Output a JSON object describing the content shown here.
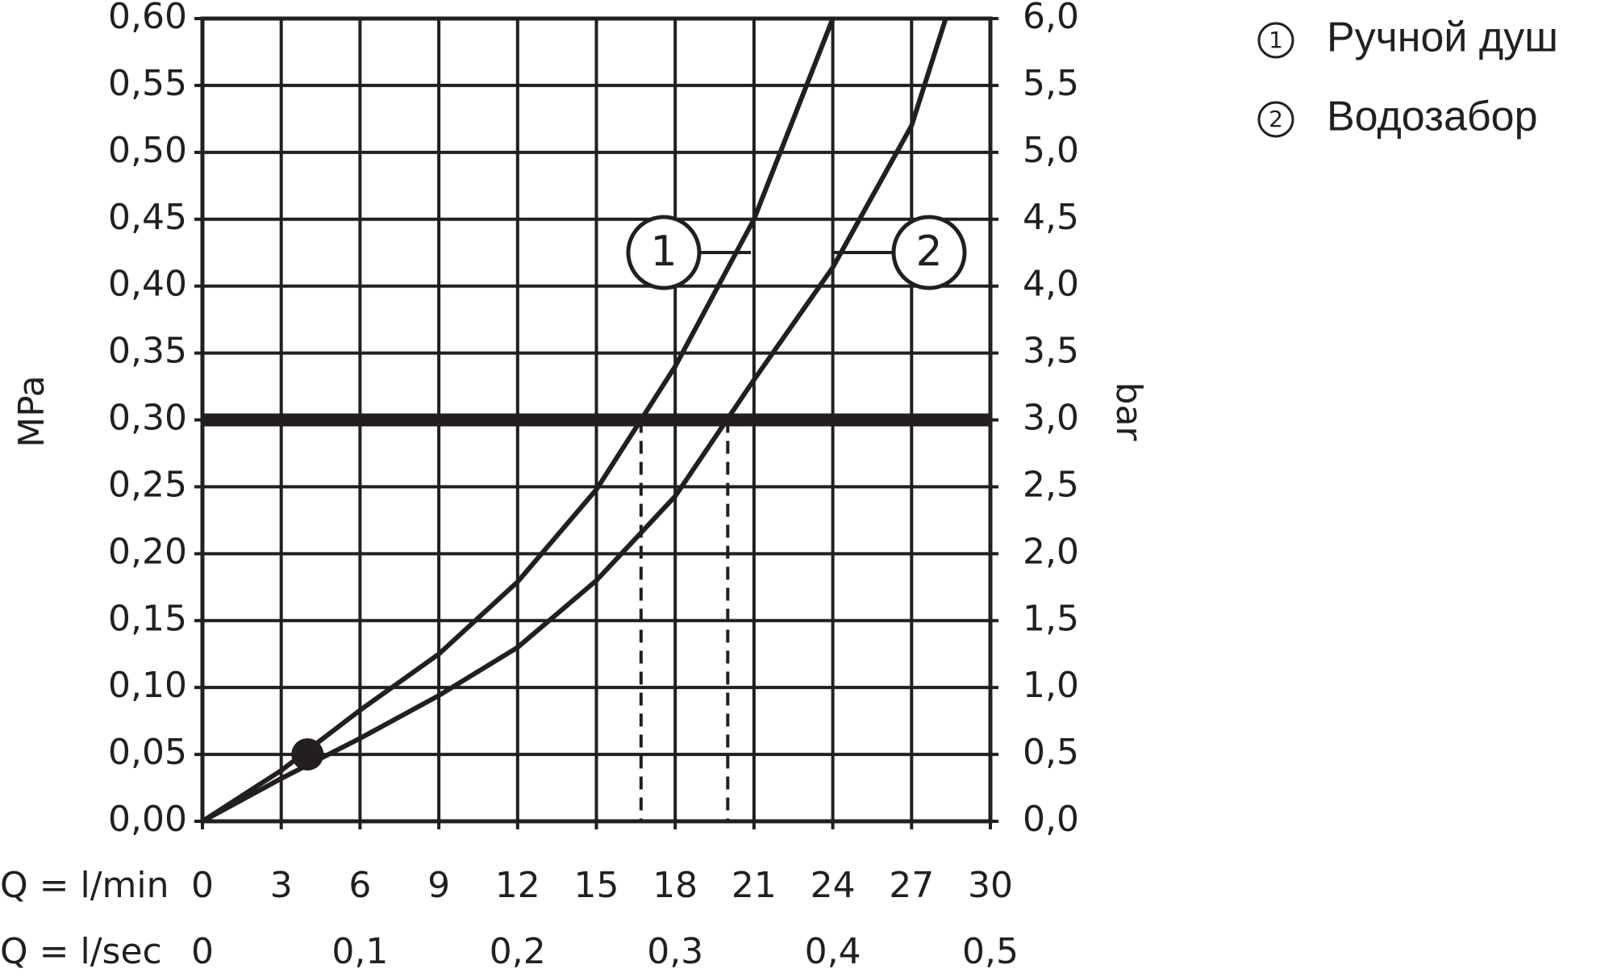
{
  "chart_data": {
    "type": "line",
    "xlabel": "Q = l/min",
    "x2label": "Q = l/sec",
    "ylabel": "MPa",
    "y2label": "bar",
    "xlim": [
      0,
      30
    ],
    "xticks": [
      0,
      3,
      6,
      9,
      12,
      15,
      18,
      21,
      24,
      27,
      30
    ],
    "x2lim": [
      0,
      0.5
    ],
    "x2ticks": [
      0,
      {
        "value": 0.1,
        "label": "0,1"
      },
      {
        "value": 0.2,
        "label": "0,2"
      },
      {
        "value": 0.3,
        "label": "0,3"
      },
      {
        "value": 0.4,
        "label": "0,4"
      },
      {
        "value": 0.5,
        "label": "0,5"
      }
    ],
    "ylim": [
      0,
      0.6
    ],
    "yticks": [
      {
        "value": 0,
        "label": "0,00"
      },
      {
        "value": 0.05,
        "label": "0,05"
      },
      {
        "value": 0.1,
        "label": "0,10"
      },
      {
        "value": 0.15,
        "label": "0,15"
      },
      {
        "value": 0.2,
        "label": "0,20"
      },
      {
        "value": 0.25,
        "label": "0,25"
      },
      {
        "value": 0.3,
        "label": "0,30"
      },
      {
        "value": 0.35,
        "label": "0,35"
      },
      {
        "value": 0.4,
        "label": "0,40"
      },
      {
        "value": 0.45,
        "label": "0,45"
      },
      {
        "value": 0.5,
        "label": "0,50"
      },
      {
        "value": 0.55,
        "label": "0,55"
      },
      {
        "value": 0.6,
        "label": "0,60"
      }
    ],
    "y2lim": [
      0,
      6
    ],
    "y2ticks": [
      {
        "value": 0,
        "label": "0,0"
      },
      {
        "value": 0.5,
        "label": "0,5"
      },
      {
        "value": 1,
        "label": "1,0"
      },
      {
        "value": 1.5,
        "label": "1,5"
      },
      {
        "value": 2,
        "label": "2,0"
      },
      {
        "value": 2.5,
        "label": "2,5"
      },
      {
        "value": 3,
        "label": "3,0"
      },
      {
        "value": 3.5,
        "label": "3,5"
      },
      {
        "value": 4,
        "label": "4,0"
      },
      {
        "value": 4.5,
        "label": "4,5"
      },
      {
        "value": 5,
        "label": "5,0"
      },
      {
        "value": 5.5,
        "label": "5,5"
      },
      {
        "value": 6,
        "label": "6,0"
      }
    ],
    "grid": true,
    "reference_y": 0.3,
    "reference_x": [
      16.7,
      20.0
    ],
    "point": {
      "x": 4,
      "y": 0.05
    },
    "series": [
      {
        "name": "Ручной душ",
        "label": "1",
        "color": "#231f20",
        "x": [
          0,
          3,
          6,
          9,
          12,
          15,
          18,
          21,
          24
        ],
        "values": [
          0,
          0.038,
          0.083,
          0.125,
          0.179,
          0.248,
          0.34,
          0.45,
          0.6
        ]
      },
      {
        "name": "Водозабор",
        "label": "2",
        "color": "#231f20",
        "x": [
          0,
          3,
          6,
          9,
          12,
          15,
          18,
          21,
          24,
          27,
          28.3
        ],
        "values": [
          0,
          0.032,
          0.062,
          0.094,
          0.13,
          0.18,
          0.243,
          0.33,
          0.414,
          0.52,
          0.6
        ]
      }
    ]
  }
}
